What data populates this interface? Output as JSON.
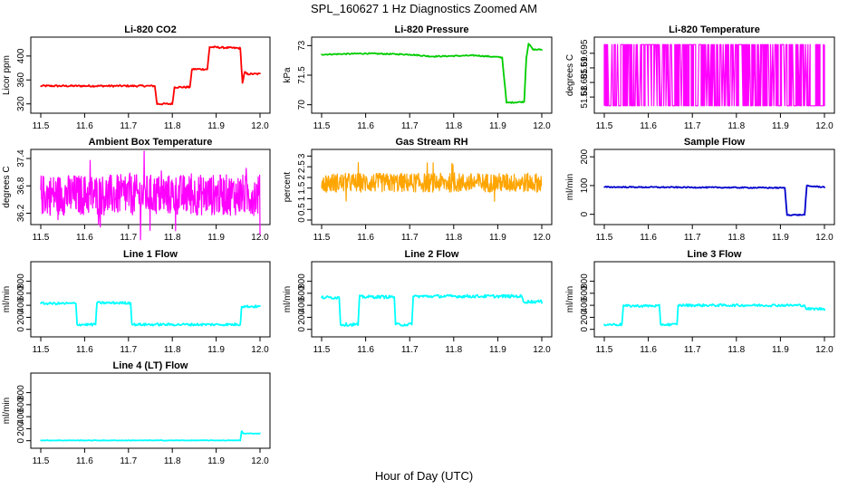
{
  "figure": {
    "title": "SPL_160627  1 Hz Diagnostics Zoomed AM",
    "xlabel": "Hour of Day (UTC)"
  },
  "chart_data": [
    {
      "type": "line",
      "title": "Li-820 CO2",
      "ylabel": "Licor ppm",
      "color": "#ff0000",
      "xlim": [
        11.5,
        12.0
      ],
      "ylim": [
        312,
        424
      ],
      "yticks": [
        320,
        360,
        400
      ],
      "x": [
        11.5,
        11.76,
        11.765,
        11.8,
        11.805,
        11.84,
        11.845,
        11.88,
        11.885,
        11.955,
        11.96,
        11.965,
        11.97,
        12.0
      ],
      "y": [
        350,
        350,
        320,
        320,
        348,
        348,
        378,
        378,
        415,
        413,
        355,
        373,
        370,
        370
      ],
      "noise": 1.5
    },
    {
      "type": "line",
      "title": "Li-820 Pressure",
      "ylabel": "kPa",
      "color": "#00cc00",
      "xlim": [
        11.5,
        12.0
      ],
      "ylim": [
        69.8,
        73.2
      ],
      "yticks": [
        70.0,
        71.5,
        73.0
      ],
      "x": [
        11.5,
        11.6,
        11.7,
        11.75,
        11.85,
        11.91,
        11.92,
        11.96,
        11.965,
        11.97,
        11.98,
        12.0
      ],
      "y": [
        72.55,
        72.6,
        72.55,
        72.45,
        72.5,
        72.4,
        70.1,
        70.15,
        72.4,
        73.1,
        72.8,
        72.8
      ],
      "noise": 0.03
    },
    {
      "type": "binary",
      "title": "Li-820 Temperature",
      "ylabel": "degrees C",
      "color": "#ff00ff",
      "xlim": [
        11.5,
        12.0
      ],
      "ylim": [
        51.676,
        51.699
      ],
      "yticks": [
        51.68,
        51.685,
        51.69,
        51.695
      ],
      "levels": [
        51.677,
        51.698
      ]
    },
    {
      "type": "noise",
      "title": "Ambient Box Temperature",
      "ylabel": "degrees C",
      "color": "#ff00ff",
      "xlim": [
        11.5,
        12.0
      ],
      "ylim": [
        36.05,
        37.5
      ],
      "yticks": [
        36.2,
        36.8,
        37.4
      ],
      "center": 36.6,
      "amplitude": 0.45
    },
    {
      "type": "noise",
      "title": "Gas Stream RH",
      "ylabel": "percent",
      "color": "#ffa500",
      "xlim": [
        11.5,
        12.0
      ],
      "ylim": [
        0.0,
        3.1
      ],
      "yticks": [
        0.0,
        0.5,
        1.0,
        1.5,
        2.0,
        2.5,
        3.0
      ],
      "center": 1.75,
      "amplitude": 0.45
    },
    {
      "type": "line",
      "title": "Sample Flow",
      "ylabel": "ml/min",
      "color": "#0000cc",
      "xlim": [
        11.5,
        12.0
      ],
      "ylim": [
        -20,
        210
      ],
      "yticks": [
        0,
        100,
        200
      ],
      "x": [
        11.5,
        11.8,
        11.91,
        11.915,
        11.955,
        11.96,
        11.965,
        12.0
      ],
      "y": [
        95,
        93,
        92,
        -2,
        -2,
        100,
        98,
        95
      ],
      "noise": 2
    },
    {
      "type": "line",
      "title": "Line 1 Flow",
      "ylabel": "ml/min",
      "color": "#00ffff",
      "xlim": [
        11.5,
        12.0
      ],
      "ylim": [
        -50,
        1050
      ],
      "yticks": [
        0,
        200,
        400,
        600,
        800
      ],
      "x": [
        11.5,
        11.58,
        11.583,
        11.625,
        11.628,
        11.705,
        11.708,
        11.955,
        11.958,
        12.0
      ],
      "y": [
        430,
        430,
        80,
        80,
        440,
        440,
        80,
        80,
        380,
        380
      ],
      "noise": 20
    },
    {
      "type": "line",
      "title": "Line 2 Flow",
      "ylabel": "ml/min",
      "color": "#00ffff",
      "xlim": [
        11.5,
        12.0
      ],
      "ylim": [
        -50,
        1050
      ],
      "yticks": [
        0,
        200,
        400,
        600,
        800
      ],
      "x": [
        11.5,
        11.54,
        11.543,
        11.583,
        11.586,
        11.665,
        11.668,
        11.705,
        11.708,
        11.955,
        11.958,
        12.0
      ],
      "y": [
        530,
        530,
        80,
        80,
        540,
        540,
        80,
        80,
        550,
        550,
        460,
        460
      ],
      "noise": 25
    },
    {
      "type": "line",
      "title": "Line 3 Flow",
      "ylabel": "ml/min",
      "color": "#00ffff",
      "xlim": [
        11.5,
        12.0
      ],
      "ylim": [
        -50,
        1050
      ],
      "yticks": [
        0,
        200,
        400,
        600,
        800
      ],
      "x": [
        11.5,
        11.54,
        11.543,
        11.625,
        11.628,
        11.665,
        11.668,
        11.955,
        11.958,
        12.0
      ],
      "y": [
        80,
        80,
        390,
        390,
        80,
        80,
        400,
        400,
        340,
        340
      ],
      "noise": 20
    },
    {
      "type": "line",
      "title": "Line 4 (LT) Flow",
      "ylabel": "ml/min",
      "color": "#00ffff",
      "xlim": [
        11.5,
        12.0
      ],
      "ylim": [
        -50,
        1050
      ],
      "yticks": [
        0,
        200,
        400,
        600,
        800
      ],
      "x": [
        11.5,
        11.955,
        11.958,
        11.962,
        12.0
      ],
      "y": [
        5,
        5,
        160,
        120,
        120
      ],
      "noise": 5
    }
  ]
}
